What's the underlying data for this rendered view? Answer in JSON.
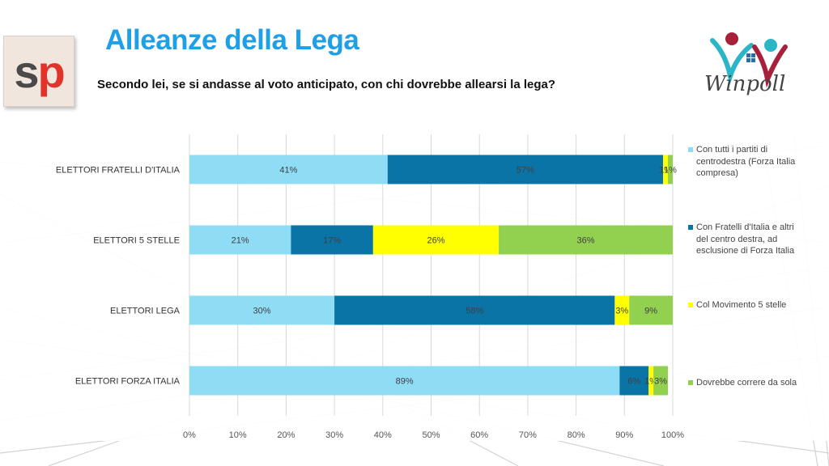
{
  "header": {
    "title": "Alleanze della Lega",
    "subtitle": "Secondo lei, se si andasse al voto anticipato, con chi dovrebbe allearsi la lega?",
    "logo_left": "sp",
    "logo_right": "Winpoll"
  },
  "colors": {
    "title": "#1e9fe6",
    "series": [
      "#8fdcf5",
      "#0a74a6",
      "#ffff00",
      "#92d050"
    ]
  },
  "chart_data": {
    "type": "bar",
    "orientation": "horizontal",
    "stacked": true,
    "categories": [
      "ELETTORI FRATELLI D'ITALIA",
      "ELETTORI 5 STELLE",
      "ELETTORI LEGA",
      "ELETTORI FORZA ITALIA"
    ],
    "series": [
      {
        "name": "Con tutti i partiti di centrodestra (Forza Italia compresa)",
        "values": [
          41,
          21,
          30,
          89
        ],
        "labels": [
          "41%",
          "21%",
          "30%",
          "89%"
        ]
      },
      {
        "name": "Con Fratelli d'Italia e altri del centro destra, ad esclusione di Forza Italia",
        "values": [
          57,
          17,
          58,
          6
        ],
        "labels": [
          "57%",
          "17%",
          "58%",
          "6%"
        ]
      },
      {
        "name": "Col Movimento 5 stelle",
        "values": [
          1,
          26,
          3,
          1
        ],
        "labels": [
          "1%",
          "26%",
          "3%",
          "1%"
        ]
      },
      {
        "name": "Dovrebbe correre da sola",
        "values": [
          1,
          36,
          9,
          3
        ],
        "labels": [
          "1%",
          "36%",
          "9%",
          "3%"
        ]
      }
    ],
    "xlim": [
      0,
      100
    ],
    "xticks": [
      "0%",
      "10%",
      "20%",
      "30%",
      "40%",
      "50%",
      "60%",
      "70%",
      "80%",
      "90%",
      "100%"
    ],
    "grid": true,
    "legend_position": "right"
  }
}
